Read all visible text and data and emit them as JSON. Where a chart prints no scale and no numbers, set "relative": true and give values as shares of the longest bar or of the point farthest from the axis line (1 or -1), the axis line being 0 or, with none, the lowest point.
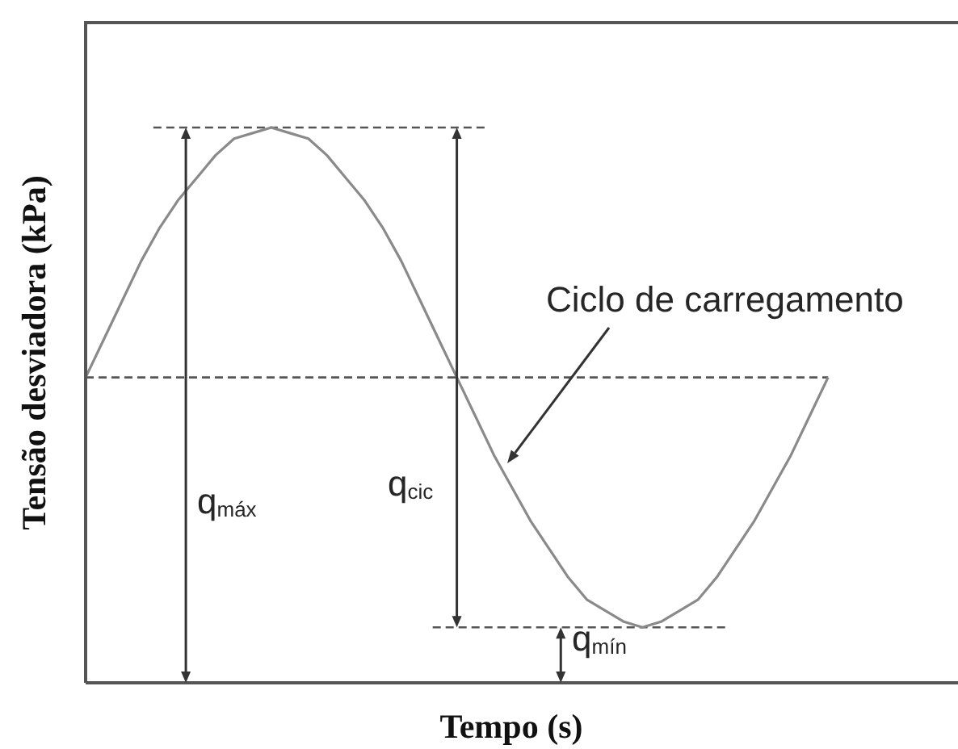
{
  "chart_data": {
    "type": "line",
    "relative": true,
    "xlabel": "Tempo (s)",
    "ylabel": "Tensão desviadora (kPa)",
    "categories": [
      null,
      null,
      null,
      null,
      null,
      null,
      null,
      null,
      null,
      null,
      null,
      null,
      null,
      null,
      null,
      null,
      null,
      null,
      null,
      null,
      null,
      null,
      null,
      null,
      null,
      null,
      null,
      null,
      null,
      null,
      null,
      null,
      null,
      null,
      null,
      null,
      null,
      null,
      null,
      null,
      null,
      null,
      null,
      null,
      null,
      null,
      null,
      null
    ],
    "values": [
      0.55,
      0.62,
      0.69,
      0.76,
      0.82,
      0.87,
      0.91,
      0.95,
      0.98,
      0.99,
      1.0,
      0.99,
      0.98,
      0.95,
      0.91,
      0.87,
      0.82,
      0.76,
      0.69,
      0.62,
      0.55,
      0.48,
      0.41,
      0.35,
      0.29,
      0.24,
      0.19,
      0.15,
      0.13,
      0.11,
      0.1,
      0.11,
      0.13,
      0.15,
      0.19,
      0.24,
      0.29,
      0.35,
      0.41,
      0.48,
      0.55,
      null,
      null,
      null,
      null,
      null,
      null,
      null
    ],
    "color": "#8a8a8a",
    "ref_lines": [
      {
        "axis": "y",
        "value": 1.0,
        "color": "#555555",
        "line_style": "dashed"
      },
      {
        "axis": "y",
        "value": 0.55,
        "color": "#555555",
        "line_style": "dashed"
      },
      {
        "axis": "y",
        "value": 0.1,
        "color": "#555555",
        "line_style": "dashed"
      }
    ],
    "annotations": [
      "Ciclo de carregamento",
      "q$_{máx}$",
      "q$_{cic}$",
      "q$_{mín}$"
    ]
  }
}
